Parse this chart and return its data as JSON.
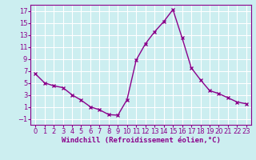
{
  "x": [
    0,
    1,
    2,
    3,
    4,
    5,
    6,
    7,
    8,
    9,
    10,
    11,
    12,
    13,
    14,
    15,
    16,
    17,
    18,
    19,
    20,
    21,
    22,
    23
  ],
  "y": [
    6.5,
    5.0,
    4.5,
    4.2,
    3.0,
    2.1,
    1.0,
    0.5,
    -0.3,
    -0.4,
    2.2,
    8.8,
    11.5,
    13.5,
    15.2,
    17.2,
    12.5,
    7.5,
    5.5,
    3.7,
    3.2,
    2.5,
    1.8,
    1.5
  ],
  "line_color": "#8B008B",
  "marker": "x",
  "marker_size": 3,
  "background_color": "#cceef0",
  "grid_color": "#ffffff",
  "xlabel": "Windchill (Refroidissement éolien,°C)",
  "xlim": [
    -0.5,
    23.5
  ],
  "ylim": [
    -2,
    18
  ],
  "yticks": [
    -1,
    1,
    3,
    5,
    7,
    9,
    11,
    13,
    15,
    17
  ],
  "xticks": [
    0,
    1,
    2,
    3,
    4,
    5,
    6,
    7,
    8,
    9,
    10,
    11,
    12,
    13,
    14,
    15,
    16,
    17,
    18,
    19,
    20,
    21,
    22,
    23
  ],
  "xlabel_fontsize": 6.5,
  "tick_fontsize": 6,
  "line_width": 1.0,
  "marker_color": "#8B008B"
}
